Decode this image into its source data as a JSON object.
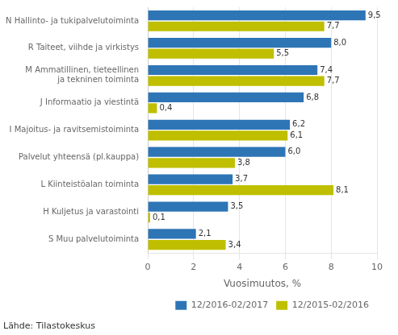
{
  "chart_data": {
    "type": "bar",
    "orientation": "horizontal",
    "categories": [
      "N Hallinto- ja tukipalvelutoiminta",
      "R Taiteet, viihde ja virkistys",
      "M Ammatillinen, tieteellinen\nja tekninen toiminta",
      "J Informaatio ja viestintä",
      "I Majoitus- ja ravitsemistoiminta",
      "Palvelut yhteensä (pl.kauppa)",
      "L Kiinteistöalan toiminta",
      "H Kuljetus ja varastointi",
      "S Muu palvelutoiminta"
    ],
    "series": [
      {
        "name": "12/2016-02/2017",
        "color": "#2E75B6",
        "values": [
          9.5,
          8.0,
          7.4,
          6.8,
          6.2,
          6.0,
          3.7,
          3.5,
          2.1
        ],
        "value_labels": [
          "9,5",
          "8,0",
          "7,4",
          "6,8",
          "6,2",
          "6,0",
          "3,7",
          "3,5",
          "2,1"
        ]
      },
      {
        "name": "12/2015-02/2016",
        "color": "#BFBF00",
        "values": [
          7.7,
          5.5,
          7.7,
          0.4,
          6.1,
          3.8,
          8.1,
          0.1,
          3.4
        ],
        "value_labels": [
          "7,7",
          "5,5",
          "7,7",
          "0,4",
          "6,1",
          "3,8",
          "8,1",
          "0,1",
          "3,4"
        ]
      }
    ],
    "xlabel": "Vuosimuutos, %",
    "xlim": [
      0,
      10
    ],
    "xticks": [
      0,
      2,
      4,
      6,
      8,
      10
    ],
    "grid": true,
    "legend": "lower right",
    "data_labels": true,
    "annotations": [
      "Lähde: Tilastokeskus"
    ]
  }
}
